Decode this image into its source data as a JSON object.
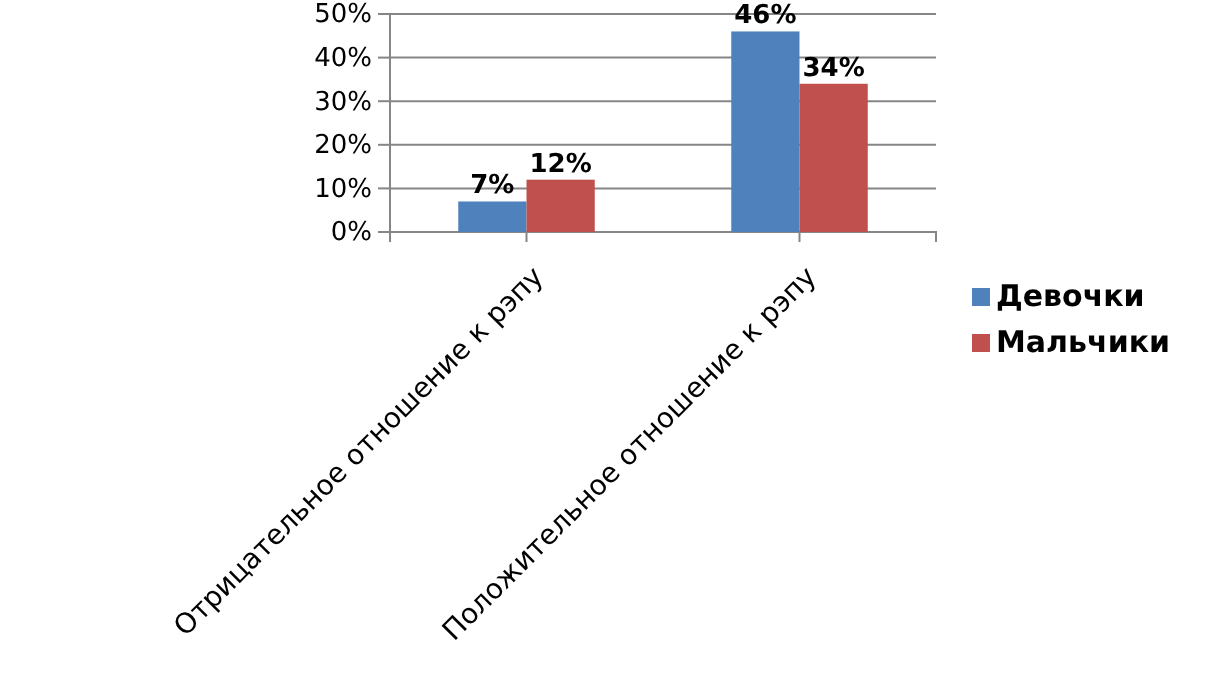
{
  "chart_data": {
    "type": "bar",
    "categories": [
      "Отрицательное отношение к рэпу",
      "Положительное отношение к рэпу"
    ],
    "series": [
      {
        "name": "Девочки",
        "color": "#4f81bd",
        "values": [
          7,
          46
        ],
        "value_labels": [
          "7%",
          "46%"
        ]
      },
      {
        "name": "Мальчики",
        "color": "#c0504d",
        "values": [
          12,
          34
        ],
        "value_labels": [
          "12%",
          "34%"
        ]
      }
    ],
    "ylim": [
      0,
      50
    ],
    "yticks": [
      {
        "value": 0,
        "label": "0%"
      },
      {
        "value": 10,
        "label": "10%"
      },
      {
        "value": 20,
        "label": "20%"
      },
      {
        "value": 30,
        "label": "30%"
      },
      {
        "value": 40,
        "label": "40%"
      },
      {
        "value": 50,
        "label": "50%"
      }
    ],
    "grid": "y",
    "legend": "right"
  }
}
